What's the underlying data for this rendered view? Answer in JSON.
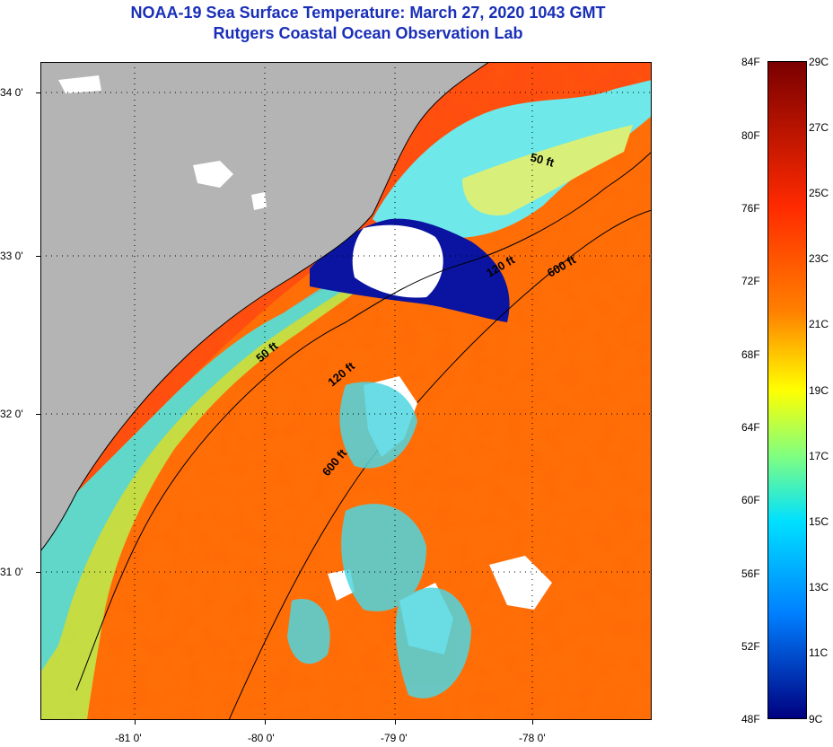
{
  "header": {
    "title": "NOAA-19 Sea Surface Temperature:  March 27, 2020 1043 GMT",
    "subtitle": "Rutgers Coastal Ocean Observation Lab"
  },
  "map": {
    "lat_labels": [
      "34 0'",
      "33 0'",
      "32 0'",
      "31 0'"
    ],
    "lon_labels": [
      "-81 0'",
      "-80 0'",
      "-79 0'",
      "-78 0'"
    ],
    "contour_labels": [
      "50 ft",
      "120 ft",
      "600 ft",
      "50 ft",
      "120 ft",
      "600 ft"
    ]
  },
  "colorbar": {
    "fahrenheit_labels": [
      "84F",
      "80F",
      "76F",
      "72F",
      "68F",
      "64F",
      "60F",
      "56F",
      "52F",
      "48F"
    ],
    "celsius_labels": [
      "29C",
      "27C",
      "25C",
      "23C",
      "21C",
      "19C",
      "17C",
      "15C",
      "13C",
      "11C",
      "9C"
    ],
    "colors": {
      "warm": "#7a0000",
      "hot": "#ff2a00",
      "mid": "#ffff00",
      "cool": "#00e0ff",
      "cold": "#000080"
    }
  },
  "colors": {
    "land": "#b4b4b4",
    "cloud": "#ffffff",
    "title": "#1a2fb8"
  }
}
